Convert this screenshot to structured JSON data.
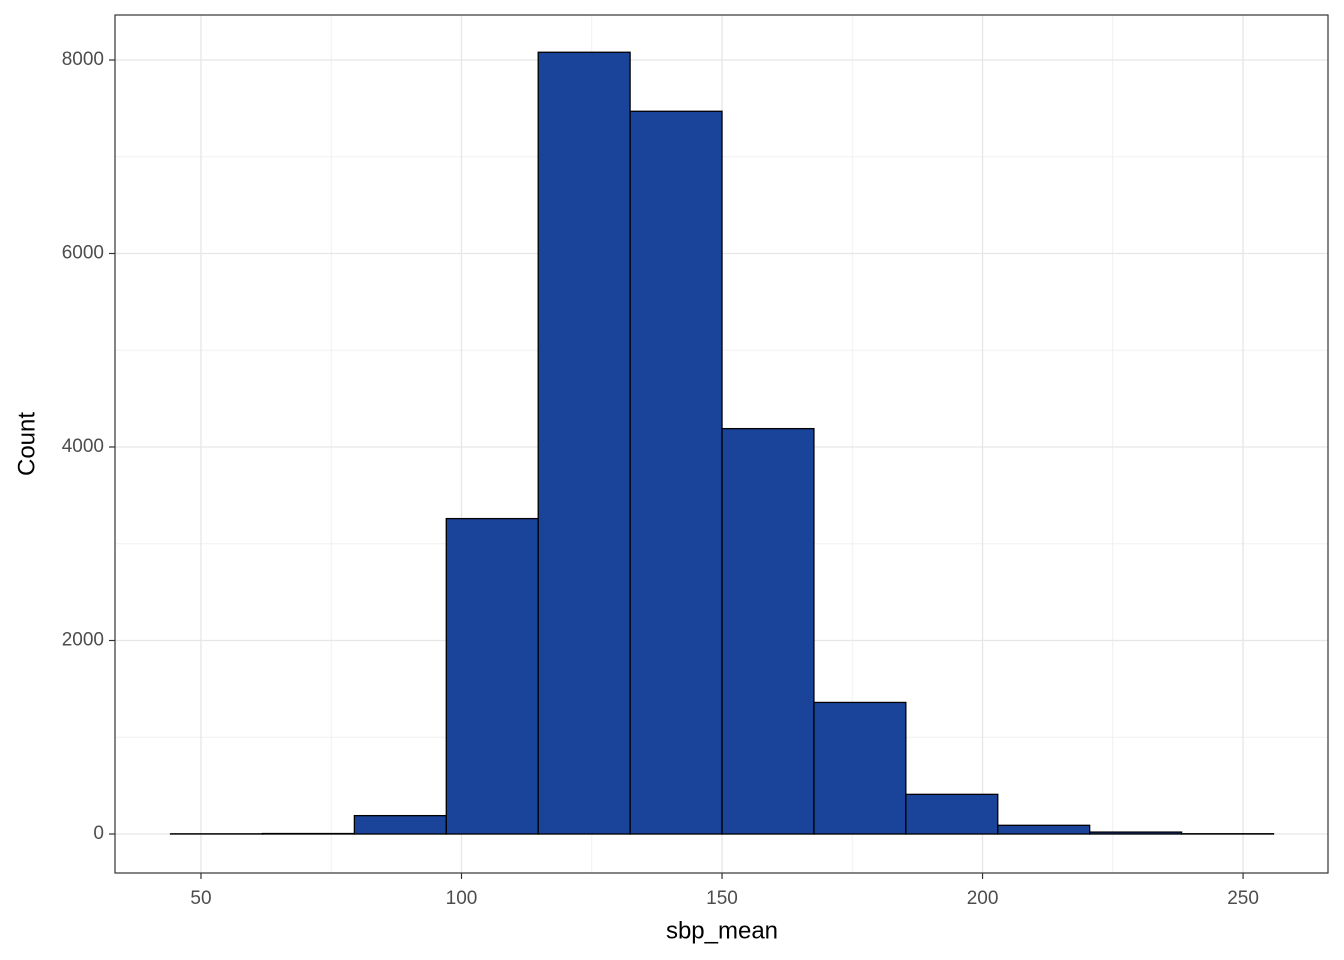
{
  "chart_data": {
    "type": "histogram",
    "x_label": "sbp_mean",
    "y_label": "Count",
    "bins": [
      44.16,
      61.8,
      79.44,
      97.08,
      114.72,
      132.36,
      150,
      167.64,
      185.28,
      202.92,
      220.56,
      238.2,
      255.84
    ],
    "values": [
      2,
      5,
      190,
      3260,
      8080,
      7470,
      4190,
      1360,
      410,
      90,
      20,
      3
    ],
    "color": "#1a439a",
    "edge_color": "#000000",
    "xlim": [
      33.5,
      266.3
    ],
    "ylim": [
      -403,
      8465
    ],
    "xticks": [
      50,
      100,
      150,
      200,
      250
    ],
    "yticks": [
      0,
      2000,
      4000,
      6000,
      8000
    ],
    "grid": true
  }
}
